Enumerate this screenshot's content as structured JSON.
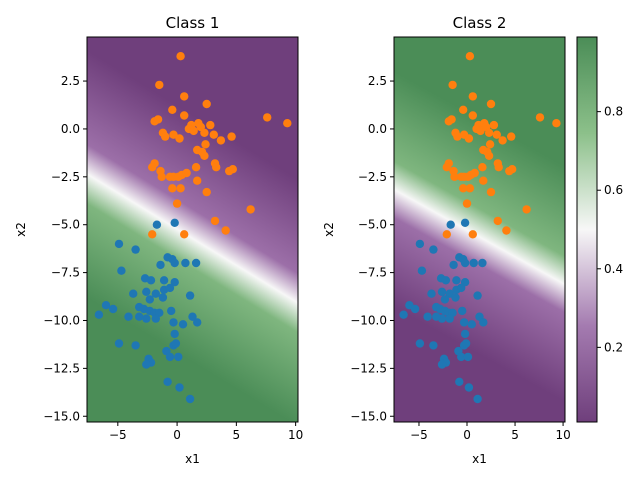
{
  "chart_data": [
    {
      "type": "scatter",
      "title": "Class 1",
      "xlabel": "x1",
      "ylabel": "x2",
      "xlim": [
        -7.6,
        10.2
      ],
      "ylim": [
        -15.3,
        4.8
      ],
      "xticks": [
        -5,
        0,
        5,
        10
      ],
      "yticks": [
        2.5,
        0.0,
        -2.5,
        -5.0,
        -7.5,
        -10.0,
        -12.5,
        -15.0
      ],
      "ytick_labels": [
        "2.5",
        "0.0",
        "−2.5",
        "−5.0",
        "−7.5",
        "−10.0",
        "−12.5",
        "−15.0"
      ],
      "xtick_labels": [
        "−5",
        "0",
        "5",
        "10"
      ],
      "background": "probability of class 1 (purple = high, green = low)",
      "series": [
        {
          "color": "#ff7f0e",
          "points": [
            [
              0.3,
              3.8
            ],
            [
              -1.5,
              2.3
            ],
            [
              0.6,
              1.7
            ],
            [
              -0.4,
              1.0
            ],
            [
              0.6,
              0.7
            ],
            [
              1.2,
              0.2
            ],
            [
              1.8,
              0.3
            ],
            [
              2.5,
              1.3
            ],
            [
              2.8,
              0.2
            ],
            [
              3.1,
              -0.3
            ],
            [
              3.7,
              -0.6
            ],
            [
              4.6,
              -0.4
            ],
            [
              7.6,
              0.6
            ],
            [
              9.3,
              0.3
            ],
            [
              -1.9,
              0.4
            ],
            [
              -1.6,
              0.5
            ],
            [
              -1.2,
              -0.2
            ],
            [
              -1.0,
              -0.4
            ],
            [
              -0.3,
              -0.3
            ],
            [
              0.2,
              -0.5
            ],
            [
              1.0,
              0.0
            ],
            [
              1.4,
              -0.1
            ],
            [
              2.0,
              0.1
            ],
            [
              2.3,
              -0.2
            ],
            [
              2.4,
              -0.8
            ],
            [
              2.1,
              -1.2
            ],
            [
              1.7,
              -1.1
            ],
            [
              2.3,
              -1.4
            ],
            [
              -1.9,
              -1.8
            ],
            [
              -2.1,
              -2.0
            ],
            [
              -1.4,
              -2.2
            ],
            [
              -1.3,
              -2.5
            ],
            [
              -0.6,
              -2.5
            ],
            [
              -0.3,
              -2.5
            ],
            [
              0.1,
              -2.5
            ],
            [
              0.4,
              -2.4
            ],
            [
              0.8,
              -2.3
            ],
            [
              1.6,
              -2.0
            ],
            [
              3.2,
              -1.8
            ],
            [
              3.3,
              -2.0
            ],
            [
              4.4,
              -2.2
            ],
            [
              4.7,
              -2.1
            ],
            [
              1.7,
              -2.7
            ],
            [
              -0.4,
              -3.1
            ],
            [
              0.3,
              -3.1
            ],
            [
              2.5,
              -3.3
            ],
            [
              0.0,
              -3.9
            ],
            [
              3.2,
              -4.8
            ],
            [
              4.1,
              -5.3
            ],
            [
              6.2,
              -4.2
            ],
            [
              -2.1,
              -5.5
            ],
            [
              0.6,
              -5.5
            ]
          ]
        },
        {
          "color": "#1f77b4",
          "points": [
            [
              -1.7,
              -5.0
            ],
            [
              -0.2,
              -4.9
            ],
            [
              -4.9,
              -6.0
            ],
            [
              -3.5,
              -6.3
            ],
            [
              -0.8,
              -6.7
            ],
            [
              -0.4,
              -6.8
            ],
            [
              -0.2,
              -7.0
            ],
            [
              0.7,
              -7.0
            ],
            [
              1.6,
              -7.0
            ],
            [
              -1.4,
              -7.1
            ],
            [
              -4.7,
              -7.4
            ],
            [
              -2.7,
              -7.8
            ],
            [
              -2.2,
              -7.9
            ],
            [
              -1.1,
              -7.9
            ],
            [
              -0.2,
              -8.0
            ],
            [
              -2.6,
              -8.5
            ],
            [
              -1.8,
              -8.6
            ],
            [
              -1.1,
              -8.4
            ],
            [
              -0.6,
              -8.3
            ],
            [
              -3.7,
              -8.6
            ],
            [
              -2.3,
              -8.9
            ],
            [
              -1.2,
              -8.8
            ],
            [
              1.1,
              -8.7
            ],
            [
              -6.0,
              -9.2
            ],
            [
              -5.4,
              -9.4
            ],
            [
              -4.1,
              -9.8
            ],
            [
              -3.2,
              -9.3
            ],
            [
              -2.8,
              -9.4
            ],
            [
              -2.3,
              -9.5
            ],
            [
              -1.9,
              -9.6
            ],
            [
              -1.5,
              -9.6
            ],
            [
              -1.8,
              -9.9
            ],
            [
              -2.6,
              -9.9
            ],
            [
              -3.2,
              -9.8
            ],
            [
              -6.6,
              -9.7
            ],
            [
              -0.5,
              -9.5
            ],
            [
              1.3,
              -9.8
            ],
            [
              -0.3,
              -10.1
            ],
            [
              0.5,
              -10.2
            ],
            [
              1.7,
              -10.1
            ],
            [
              -0.2,
              -10.7
            ],
            [
              -4.9,
              -11.2
            ],
            [
              -3.5,
              -11.3
            ],
            [
              -0.3,
              -11.3
            ],
            [
              -0.1,
              -11.2
            ],
            [
              -0.9,
              -11.6
            ],
            [
              -0.6,
              -11.9
            ],
            [
              0.1,
              -11.9
            ],
            [
              -2.4,
              -12.0
            ],
            [
              -2.2,
              -12.2
            ],
            [
              -2.6,
              -12.3
            ],
            [
              -0.8,
              -13.2
            ],
            [
              0.2,
              -13.5
            ],
            [
              1.1,
              -14.1
            ]
          ]
        }
      ]
    },
    {
      "type": "scatter",
      "title": "Class 2",
      "xlabel": "x1",
      "ylabel": "x2",
      "xlim": [
        -7.6,
        10.2
      ],
      "ylim": [
        -15.3,
        4.8
      ],
      "xticks": [
        -5,
        0,
        5,
        10
      ],
      "yticks": [
        2.5,
        0.0,
        -2.5,
        -5.0,
        -7.5,
        -10.0,
        -12.5,
        -15.0
      ],
      "ytick_labels": [
        "2.5",
        "0.0",
        "−2.5",
        "−5.0",
        "−7.5",
        "−10.0",
        "−12.5",
        "−15.0"
      ],
      "xtick_labels": [
        "−5",
        "0",
        "5",
        "10"
      ],
      "background": "probability of class 2 (green = high, purple = low)",
      "series": "same points as Class 1"
    }
  ],
  "colorbar": {
    "ticks": [
      0.2,
      0.4,
      0.6,
      0.8
    ],
    "tick_labels": [
      "0.2",
      "0.4",
      "0.6",
      "0.8"
    ],
    "range": [
      0.01,
      0.99
    ],
    "colormap": "PRGn",
    "low_color": "#6f3f7c",
    "mid_color": "#f7f7f7",
    "high_color": "#4b8d57"
  }
}
